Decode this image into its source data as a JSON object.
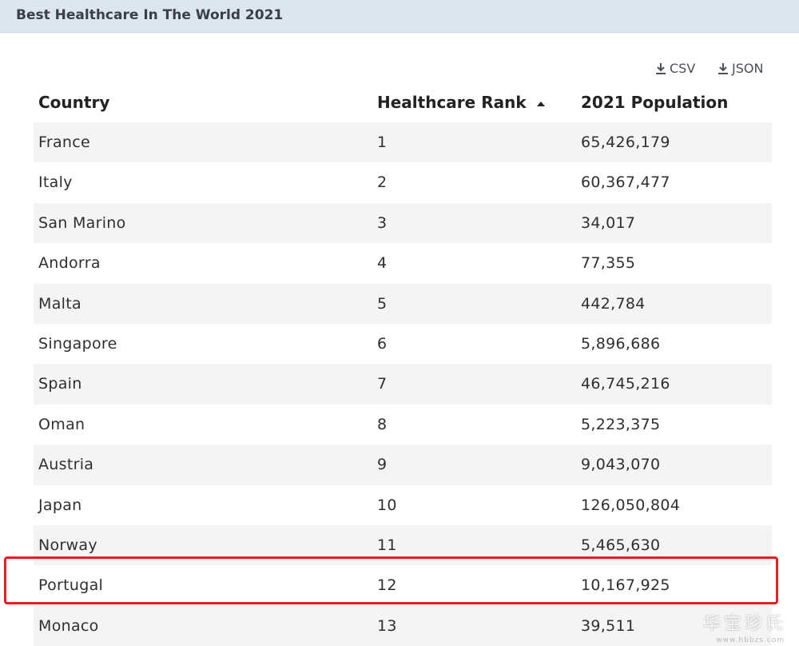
{
  "title": "Best Healthcare In The World 2021",
  "exports": {
    "csv_label": "CSV",
    "json_label": "JSON"
  },
  "table": {
    "columns": [
      "Country",
      "Healthcare Rank",
      "2021 Population"
    ],
    "sorted_column": "Healthcare Rank",
    "sort_direction": "ascending",
    "rows": [
      {
        "country": "France",
        "rank": "1",
        "population": "65,426,179"
      },
      {
        "country": "Italy",
        "rank": "2",
        "population": "60,367,477"
      },
      {
        "country": "San Marino",
        "rank": "3",
        "population": "34,017"
      },
      {
        "country": "Andorra",
        "rank": "4",
        "population": "77,355"
      },
      {
        "country": "Malta",
        "rank": "5",
        "population": "442,784"
      },
      {
        "country": "Singapore",
        "rank": "6",
        "population": "5,896,686"
      },
      {
        "country": "Spain",
        "rank": "7",
        "population": "46,745,216"
      },
      {
        "country": "Oman",
        "rank": "8",
        "population": "5,223,375"
      },
      {
        "country": "Austria",
        "rank": "9",
        "population": "9,043,070"
      },
      {
        "country": "Japan",
        "rank": "10",
        "population": "126,050,804"
      },
      {
        "country": "Norway",
        "rank": "11",
        "population": "5,465,630"
      },
      {
        "country": "Portugal",
        "rank": "12",
        "population": "10,167,925"
      },
      {
        "country": "Monaco",
        "rank": "13",
        "population": "39,511"
      }
    ],
    "highlighted_row": "Portugal",
    "highlight_color": "#e0211d",
    "stripe_color": "#f4f4f4"
  },
  "watermark": {
    "text": "华宝珍氏",
    "sub": "www.hbbzs.com"
  }
}
